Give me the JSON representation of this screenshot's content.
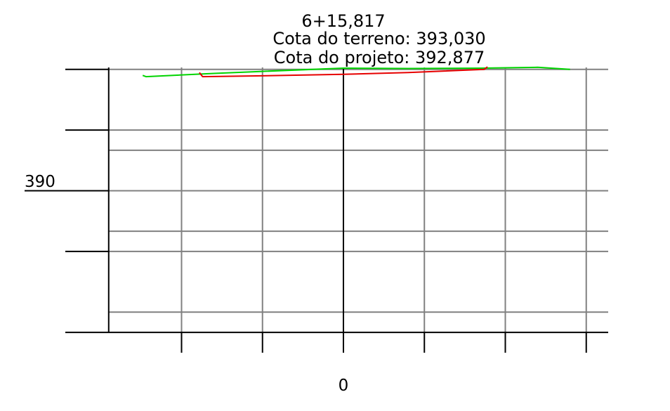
{
  "chart_data": {
    "type": "line",
    "title_lines": [
      "6+15,817",
      "Cota do terreno: 393,030",
      "Cota do projeto: 392,877"
    ],
    "station": "6+15,817",
    "terrain_label": "Cota do terreno: 393,030",
    "design_label": "Cota do projeto: 392,877",
    "xlim": [
      -15,
      15
    ],
    "ylim": [
      386.5,
      393.5
    ],
    "x_grid": [
      -10,
      -5,
      0,
      5,
      10,
      15
    ],
    "x_axis_line": -14.5,
    "y_grid": [
      387,
      389,
      391
    ],
    "y_major": [
      386.5,
      388.5,
      390,
      391.5,
      393
    ],
    "y_tick_labels": [
      {
        "value": 390,
        "text": "390"
      }
    ],
    "x_tick_labels": [
      {
        "value": 0,
        "text": "0"
      }
    ],
    "series": [
      {
        "color": "#00d400",
        "points": [
          [
            -12.4,
            392.85
          ],
          [
            -12.2,
            392.82
          ],
          [
            -8,
            392.9
          ],
          [
            -5,
            392.95
          ],
          [
            0,
            393.03
          ],
          [
            4,
            393.02
          ],
          [
            8.5,
            393.03
          ],
          [
            12,
            393.05
          ],
          [
            14,
            393.0
          ]
        ]
      },
      {
        "color": "#e60000",
        "points": [
          [
            -8.9,
            392.92
          ],
          [
            -8.7,
            392.82
          ],
          [
            -5,
            392.84
          ],
          [
            0,
            392.877
          ],
          [
            4,
            392.92
          ],
          [
            8.7,
            393.0
          ],
          [
            8.9,
            393.06
          ]
        ]
      }
    ],
    "grid": true,
    "colors": {
      "grid": "#808080",
      "axis": "#000000"
    }
  }
}
